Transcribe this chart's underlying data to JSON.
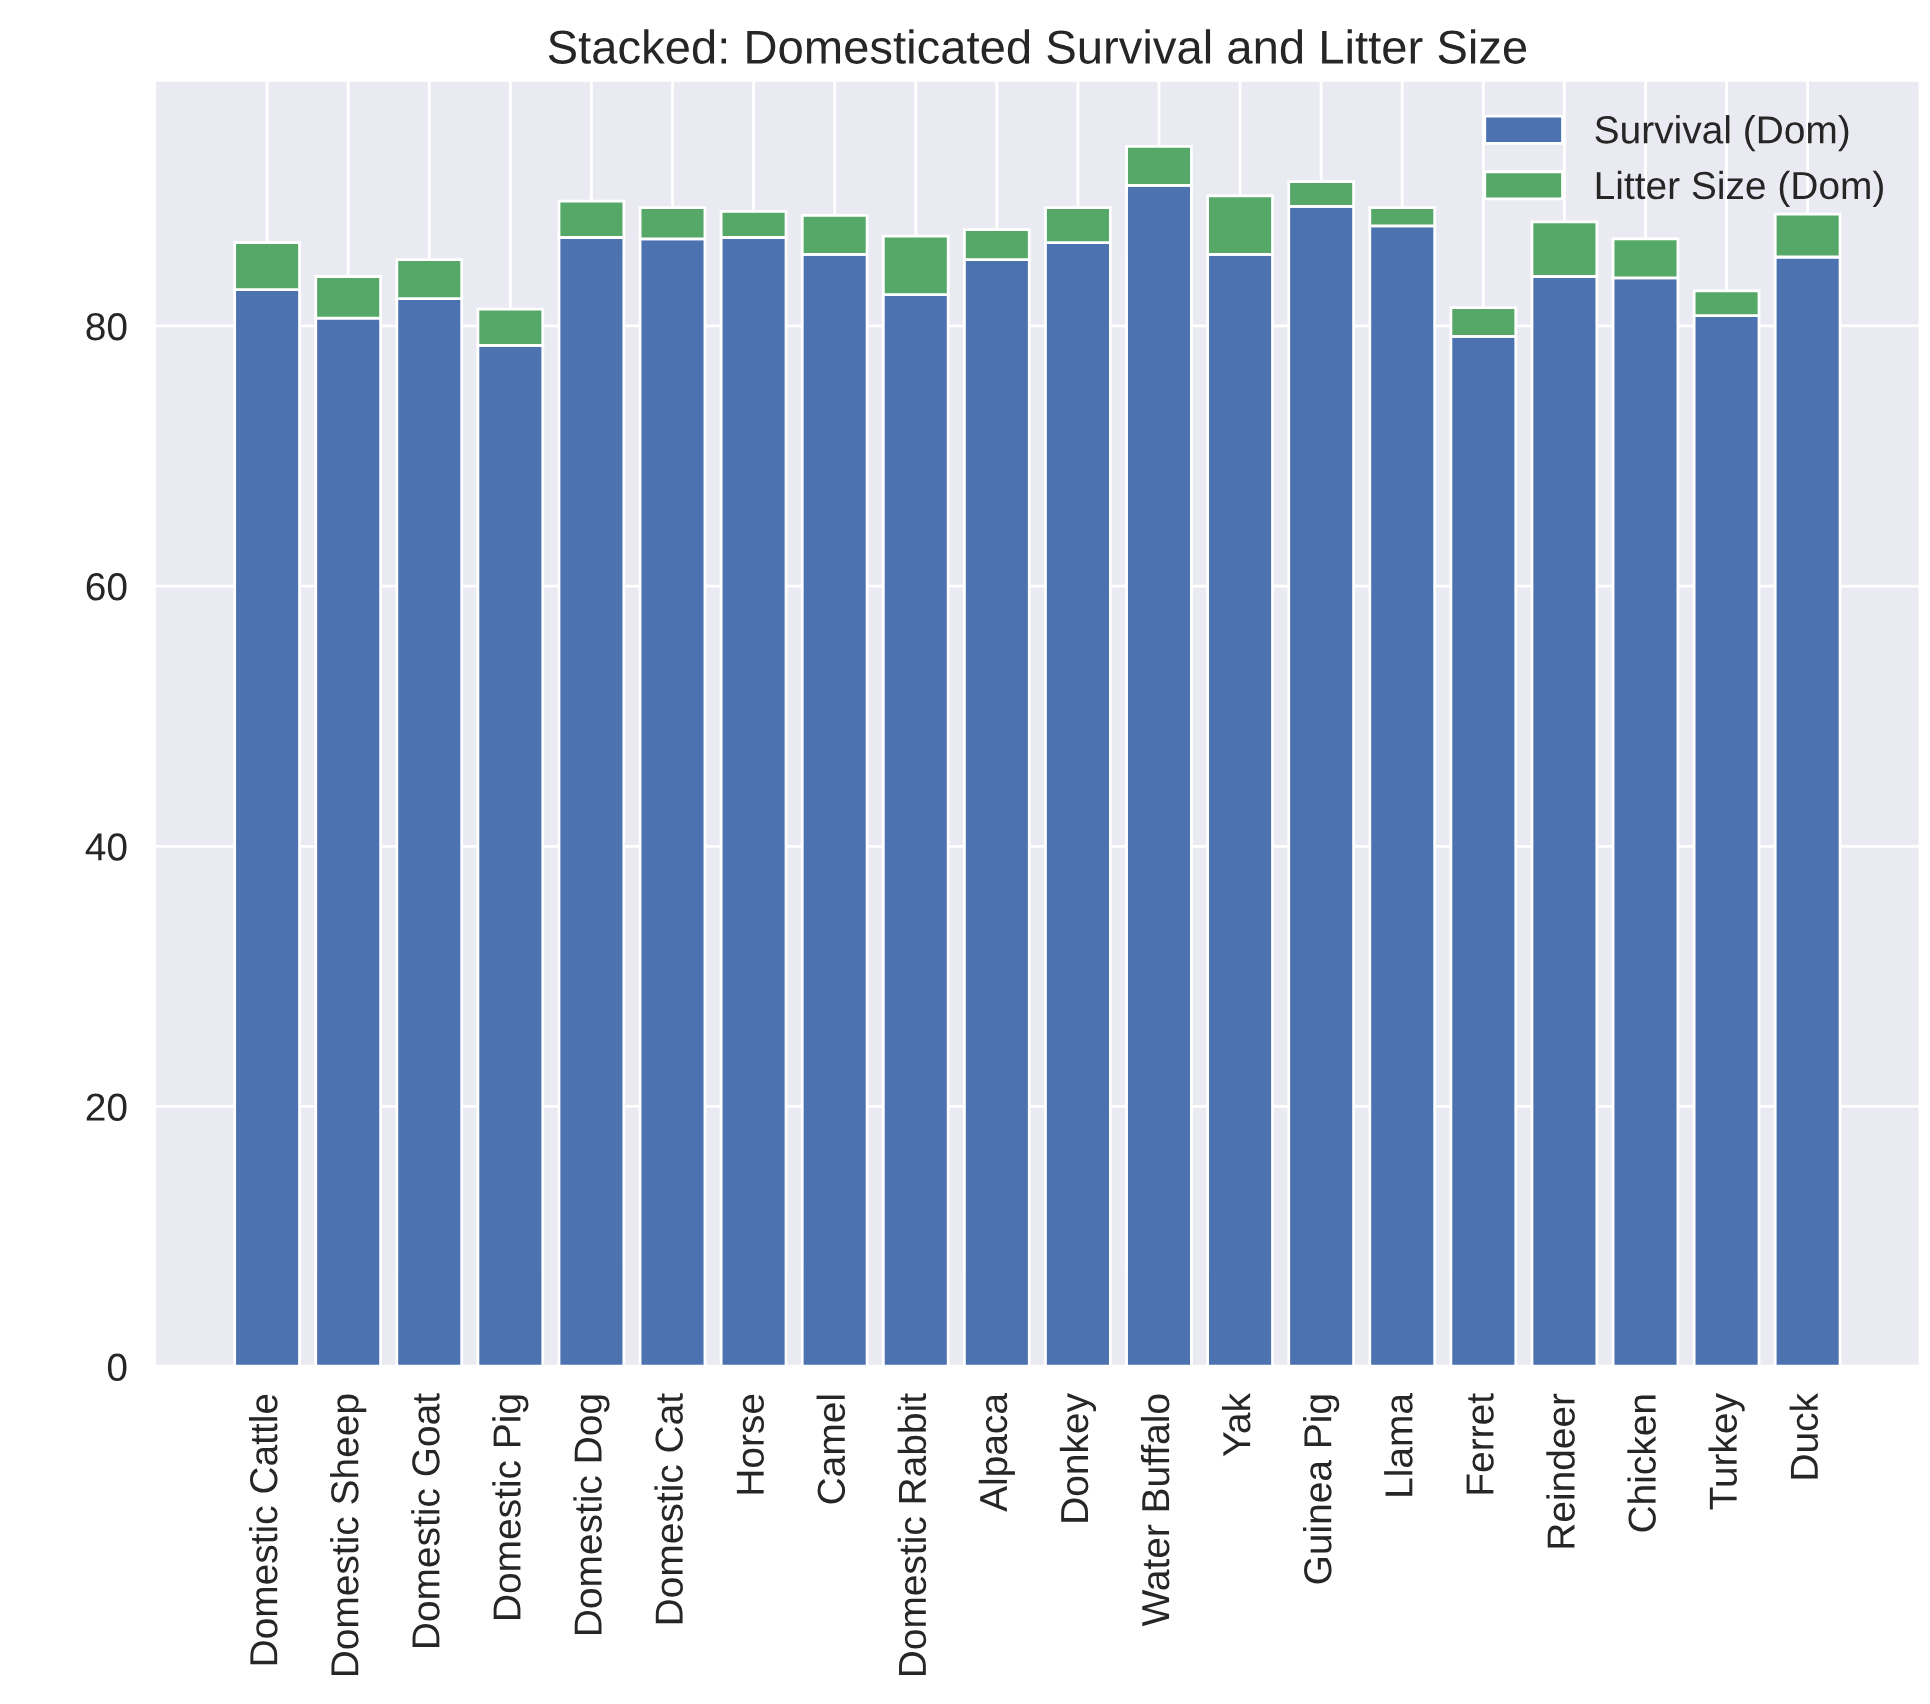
{
  "chart_data": {
    "type": "bar",
    "title": "Stacked: Domesticated Survival and Litter Size",
    "stacked": true,
    "categories": [
      "Domestic Cattle",
      "Domestic Sheep",
      "Domestic Goat",
      "Domestic Pig",
      "Domestic Dog",
      "Domestic Cat",
      "Horse",
      "Camel",
      "Domestic Rabbit",
      "Alpaca",
      "Donkey",
      "Water Buffalo",
      "Yak",
      "Guinea Pig",
      "Llama",
      "Ferret",
      "Reindeer",
      "Chicken",
      "Turkey",
      "Duck"
    ],
    "series": [
      {
        "name": "Survival (Dom)",
        "color": "#4c72b0",
        "values": [
          82.8,
          80.6,
          82.1,
          78.5,
          86.8,
          86.7,
          86.8,
          85.5,
          82.4,
          85.1,
          86.4,
          90.8,
          85.5,
          89.2,
          87.7,
          79.2,
          83.8,
          83.7,
          80.8,
          85.3
        ]
      },
      {
        "name": "Litter Size (Dom)",
        "color": "#55a868",
        "values": [
          3.6,
          3.2,
          3.0,
          2.8,
          2.8,
          2.4,
          2.0,
          3.0,
          4.5,
          2.3,
          2.7,
          3.0,
          4.5,
          1.9,
          1.4,
          2.2,
          4.2,
          3.0,
          1.9,
          3.3
        ]
      }
    ],
    "ylim": [
      0,
      98.9
    ],
    "yticks": [
      0,
      20,
      40,
      60,
      80
    ],
    "grid": true,
    "legend": "top right"
  }
}
